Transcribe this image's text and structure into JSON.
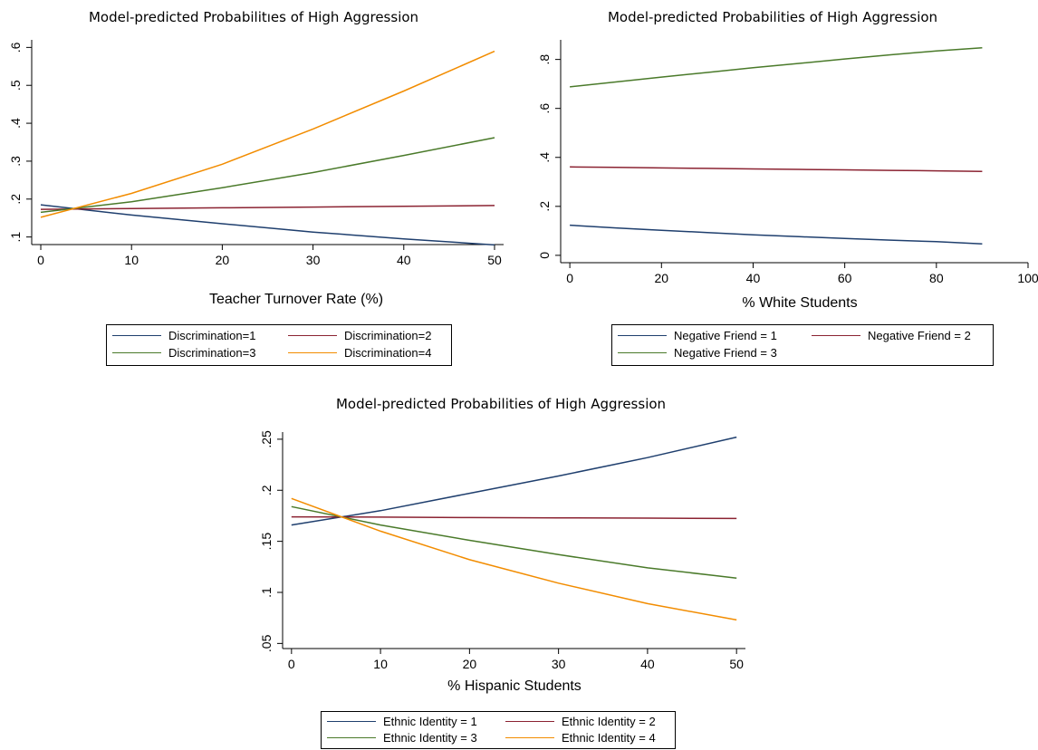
{
  "chart_data": [
    {
      "type": "line",
      "title": "Model-predicted Probabilitıes of High Aggression",
      "xlabel": "Teacher Turnover Rate (%)",
      "ylabel": "",
      "xlim": [
        -1,
        51
      ],
      "ylim": [
        0.08,
        0.62
      ],
      "xticks": [
        0,
        10,
        20,
        30,
        40,
        50
      ],
      "xtick_labels": [
        "0",
        "10",
        "20",
        "30",
        "40",
        "50"
      ],
      "yticks": [
        0.1,
        0.2,
        0.3,
        0.4,
        0.5,
        0.6
      ],
      "ytick_labels": [
        ".1",
        ".2",
        ".3",
        ".4",
        ".5",
        ".6"
      ],
      "grid": false,
      "legend_position": "bottom",
      "x": [
        0,
        10,
        20,
        30,
        40,
        50
      ],
      "series": [
        {
          "name": "Discrimination=1",
          "color": "#1f3f6e",
          "values": [
            0.185,
            0.158,
            0.135,
            0.113,
            0.095,
            0.079
          ]
        },
        {
          "name": "Discrimination=2",
          "color": "#8b2332",
          "values": [
            0.173,
            0.175,
            0.177,
            0.179,
            0.181,
            0.183
          ]
        },
        {
          "name": "Discrimination=3",
          "color": "#4a7a2a",
          "values": [
            0.165,
            0.193,
            0.23,
            0.27,
            0.315,
            0.362
          ]
        },
        {
          "name": "Discrimination=4",
          "color": "#f28c00",
          "values": [
            0.152,
            0.215,
            0.292,
            0.385,
            0.485,
            0.59
          ]
        }
      ]
    },
    {
      "type": "line",
      "title": "Model-predicted Probabilities of High Aggression",
      "xlabel": "% White Students",
      "ylabel": "",
      "xlim": [
        -2,
        100
      ],
      "ylim": [
        -0.03,
        0.88
      ],
      "xticks": [
        0,
        20,
        40,
        60,
        80,
        100
      ],
      "xtick_labels": [
        "0",
        "20",
        "40",
        "60",
        "80",
        "100"
      ],
      "yticks": [
        0,
        0.2,
        0.4,
        0.6,
        0.8
      ],
      "ytick_labels": [
        "0",
        ".2",
        ".4",
        ".6",
        ".8"
      ],
      "grid": false,
      "legend_position": "bottom",
      "x": [
        0,
        10,
        20,
        30,
        40,
        50,
        60,
        70,
        80,
        90
      ],
      "series": [
        {
          "name": "Negative Friend = 1",
          "color": "#1f3f6e",
          "values": [
            0.123,
            0.112,
            0.102,
            0.093,
            0.084,
            0.076,
            0.069,
            0.062,
            0.056,
            0.047
          ]
        },
        {
          "name": "Negative Friend = 2",
          "color": "#8b2332",
          "values": [
            0.361,
            0.359,
            0.357,
            0.355,
            0.353,
            0.351,
            0.349,
            0.347,
            0.345,
            0.343
          ]
        },
        {
          "name": "Negative Friend = 3",
          "color": "#4a7a2a",
          "values": [
            0.688,
            0.708,
            0.728,
            0.747,
            0.766,
            0.784,
            0.802,
            0.819,
            0.835,
            0.848
          ]
        }
      ]
    },
    {
      "type": "line",
      "title": "Model-predicted Probabilities of High Aggression",
      "xlabel": "% Hispanic Students",
      "ylabel": "",
      "xlim": [
        -1,
        51
      ],
      "ylim": [
        0.045,
        0.257
      ],
      "xticks": [
        0,
        10,
        20,
        30,
        40,
        50
      ],
      "xtick_labels": [
        "0",
        "10",
        "20",
        "30",
        "40",
        "50"
      ],
      "yticks": [
        0.05,
        0.1,
        0.15,
        0.2,
        0.25
      ],
      "ytick_labels": [
        ".05",
        ".1",
        ".15",
        ".2",
        ".25"
      ],
      "grid": false,
      "legend_position": "bottom",
      "x": [
        0,
        10,
        20,
        30,
        40,
        50
      ],
      "series": [
        {
          "name": "Ethnic Identity = 1",
          "color": "#1f3f6e",
          "values": [
            0.166,
            0.18,
            0.197,
            0.214,
            0.232,
            0.252
          ]
        },
        {
          "name": "Ethnic Identity = 2",
          "color": "#8b2332",
          "values": [
            0.174,
            0.1737,
            0.1733,
            0.173,
            0.1727,
            0.1724
          ]
        },
        {
          "name": "Ethnic Identity = 3",
          "color": "#4a7a2a",
          "values": [
            0.184,
            0.166,
            0.151,
            0.137,
            0.124,
            0.114
          ]
        },
        {
          "name": "Ethnic Identity = 4",
          "color": "#f28c00",
          "values": [
            0.192,
            0.16,
            0.132,
            0.109,
            0.089,
            0.073
          ]
        }
      ]
    }
  ]
}
